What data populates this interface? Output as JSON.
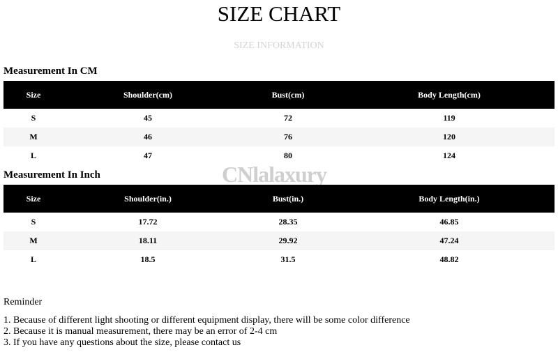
{
  "title": "SIZE CHART",
  "subtitle": "SIZE INFORMATION",
  "watermark": "CNlalaxury",
  "cm": {
    "heading": "Measurement In CM",
    "columns": [
      "Size",
      "Shoulder(cm)",
      "Bust(cm)",
      "Body Length(cm)"
    ],
    "rows": [
      [
        "S",
        "45",
        "72",
        "119"
      ],
      [
        "M",
        "46",
        "76",
        "120"
      ],
      [
        "L",
        "47",
        "80",
        "124"
      ]
    ]
  },
  "inch": {
    "heading": "Measurement In Inch",
    "columns": [
      "Size",
      "Shoulder(in.)",
      "Bust(in.)",
      "Body Length(in.)"
    ],
    "rows": [
      [
        "S",
        "17.72",
        "28.35",
        "46.85"
      ],
      [
        "M",
        "18.11",
        "29.92",
        "47.24"
      ],
      [
        "L",
        "18.5",
        "31.5",
        "48.82"
      ]
    ]
  },
  "reminder": {
    "heading": "Reminder",
    "items": [
      "1. Because of different light shooting or different equipment display, there will be some color difference",
      "2. Because it is manual measurement, there may be an error of 2-4 cm",
      "3. If you have any questions about the size, please contact us"
    ]
  }
}
